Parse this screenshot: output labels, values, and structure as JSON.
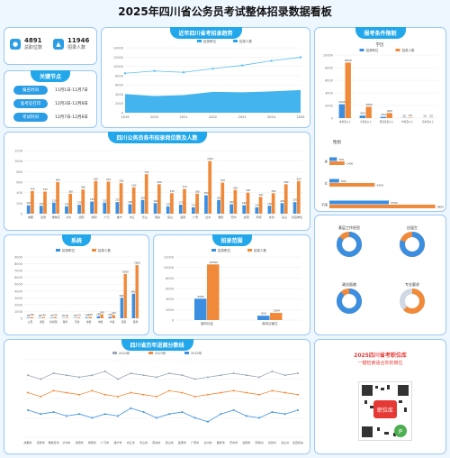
{
  "page": {
    "title": "2025年四川省公务员考试整体招录数据看板"
  },
  "stats": {
    "positions": {
      "value": "4891",
      "label": "总职位数"
    },
    "recruits": {
      "value": "11946",
      "label": "招录人数"
    }
  },
  "timeline": {
    "title": "关键节点",
    "items": [
      {
        "label": "报名时间",
        "date": "11月1日-11月7日"
      },
      {
        "label": "准考证打印",
        "date": "12月3日-12月8日"
      },
      {
        "label": "考试时间",
        "date": "12月7日-12月8日"
      }
    ]
  },
  "colors": {
    "blue": "#3b8ee0",
    "orange": "#f08a3a",
    "accent": "#22a7ea",
    "gray": "#cfd8e3"
  },
  "chart_data": [
    {
      "id": "trend",
      "type": "area",
      "title": "近年四川省考招录趋势",
      "categories": [
        "2019",
        "2020",
        "2021",
        "2022",
        "2023",
        "2024",
        "2025"
      ],
      "series": [
        {
          "name": "招录职位",
          "values": [
            4000,
            3600,
            3800,
            4500,
            4400,
            4600,
            4891
          ]
        },
        {
          "name": "招录人数",
          "values": [
            8500,
            9000,
            8700,
            9500,
            10200,
            11200,
            11946
          ]
        }
      ],
      "ylim": [
        0,
        14000
      ],
      "ticks": [
        "0",
        "2000",
        "4000",
        "6000",
        "8000",
        "10000",
        "12000",
        "14000"
      ]
    },
    {
      "id": "education",
      "type": "bar",
      "title": "学历",
      "categories": [
        "本科及以上",
        "大专及以上",
        "研究生及以上",
        "中专及以上",
        "高中及以上"
      ],
      "series": [
        {
          "name": "招录职位",
          "values": [
            2200,
            400,
            200,
            30,
            10
          ]
        },
        {
          "name": "招录人数",
          "values": [
            8800,
            1800,
            800,
            60,
            20
          ]
        }
      ],
      "ylim": [
        0,
        10000
      ],
      "ticks": [
        "0",
        "2000",
        "4000",
        "6000",
        "8000",
        "10000"
      ]
    },
    {
      "id": "gender",
      "type": "hbar",
      "title": "性别",
      "categories": [
        "男",
        "女",
        "不限"
      ],
      "series": [
        {
          "name": "招录职位",
          "values": [
            700,
            900,
            5500
          ]
        },
        {
          "name": "招录人数",
          "values": [
            1400,
            4200,
            9800
          ]
        }
      ],
      "xlim": [
        0,
        10000
      ],
      "labels": {
        "男": [
          "",
          ""
        ],
        "女": [
          "",
          "4200"
        ],
        "不限": [
          "",
          "9800"
        ]
      }
    },
    {
      "id": "cities",
      "type": "bar",
      "title": "四川公务员各市招录岗位数及人数",
      "categories": [
        "成都",
        "自贡",
        "攀枝花",
        "泸州",
        "德阳",
        "绵阳",
        "广元",
        "遂宁",
        "内江",
        "乐山",
        "南充",
        "眉山",
        "宜宾",
        "广安",
        "达州",
        "雅安",
        "巴中",
        "资阳",
        "阿坝",
        "甘孜",
        "凉山",
        "省直单位"
      ],
      "series": [
        {
          "name": "职位数",
          "values": [
            160,
            150,
            210,
            140,
            170,
            230,
            210,
            220,
            180,
            260,
            200,
            140,
            170,
            120,
            350,
            260,
            180,
            160,
            120,
            150,
            200,
            220
          ]
        },
        {
          "name": "招录人数",
          "values": [
            430,
            420,
            600,
            380,
            460,
            620,
            610,
            580,
            500,
            750,
            560,
            390,
            470,
            380,
            1000,
            590,
            450,
            400,
            320,
            390,
            560,
            620
          ]
        }
      ],
      "ylim": [
        0,
        1200
      ],
      "ticks": [
        "0",
        "200",
        "400",
        "600",
        "800",
        "1000",
        "1200"
      ]
    },
    {
      "id": "system",
      "type": "bar",
      "title": "系统",
      "categories": [
        "公安",
        "法院",
        "检察院",
        "税务",
        "司法",
        "省级",
        "市级",
        "乡镇",
        "街道",
        "其他"
      ],
      "series": [
        {
          "name": "招录职位",
          "values": [
            80,
            60,
            70,
            40,
            50,
            100,
            280,
            200,
            3000,
            3600
          ]
        },
        {
          "name": "招录人数",
          "values": [
            180,
            140,
            150,
            90,
            110,
            200,
            560,
            470,
            6500,
            7800
          ]
        }
      ],
      "ylim": [
        0,
        9000
      ],
      "ticks": [
        "0",
        "1000",
        "2000",
        "3000",
        "4000",
        "5000",
        "6000",
        "7000",
        "8000",
        "9000"
      ]
    },
    {
      "id": "scope",
      "type": "bar",
      "title": "招录范围",
      "categories": [
        "面向社会",
        "面向应届生"
      ],
      "series": [
        {
          "name": "招录职位",
          "values": [
            4065,
            826
          ]
        },
        {
          "name": "招录人数",
          "values": [
            10582,
            1364
          ]
        }
      ],
      "ylim": [
        0,
        12000
      ],
      "ticks": [
        "0",
        "2000",
        "4000",
        "6000",
        "8000",
        "10000",
        "12000"
      ]
    },
    {
      "id": "donuts",
      "type": "pie",
      "items": [
        {
          "title": "基层工作经验",
          "values": [
            85,
            15
          ]
        },
        {
          "title": "应届生",
          "values": [
            80,
            20
          ]
        },
        {
          "title": "政治面貌",
          "values": [
            88,
            12
          ]
        },
        {
          "title": "专业要求",
          "values": [
            62,
            38
          ]
        }
      ]
    },
    {
      "id": "ratio",
      "type": "line",
      "title": "四川省历年进面分数线",
      "categories": [
        "成都市",
        "自贡市",
        "攀枝花市",
        "泸州市",
        "德阳市",
        "绵阳市",
        "广元市",
        "遂宁市",
        "内江市",
        "乐山市",
        "南充市",
        "眉山市",
        "宜宾市",
        "广安市",
        "达州市",
        "雅安市",
        "巴中市",
        "资阳市",
        "阿坝州",
        "甘孜州",
        "凉山州",
        "省直机关"
      ],
      "series": [
        {
          "name": "2024年",
          "values": [
            72,
            70,
            73,
            72,
            71,
            72,
            74,
            70,
            73,
            72,
            71,
            73,
            72,
            70,
            71,
            72,
            73,
            72,
            71,
            74,
            72,
            73
          ]
        },
        {
          "name": "2023年",
          "values": [
            63,
            61,
            64,
            63,
            62,
            64,
            62,
            61,
            63,
            62,
            61,
            64,
            63,
            61,
            62,
            63,
            64,
            63,
            62,
            64,
            63,
            62
          ]
        },
        {
          "name": "2022年",
          "values": [
            54,
            52,
            53,
            51,
            52,
            50,
            52,
            51,
            55,
            53,
            50,
            52,
            53,
            50,
            48,
            52,
            54,
            51,
            50,
            53,
            52,
            54
          ]
        }
      ],
      "ylim": [
        40,
        80
      ]
    }
  ],
  "promo": {
    "line1": "2025四川省考职位库",
    "line2": "一键检索适合你的岗位",
    "qr_text": "职位库"
  }
}
